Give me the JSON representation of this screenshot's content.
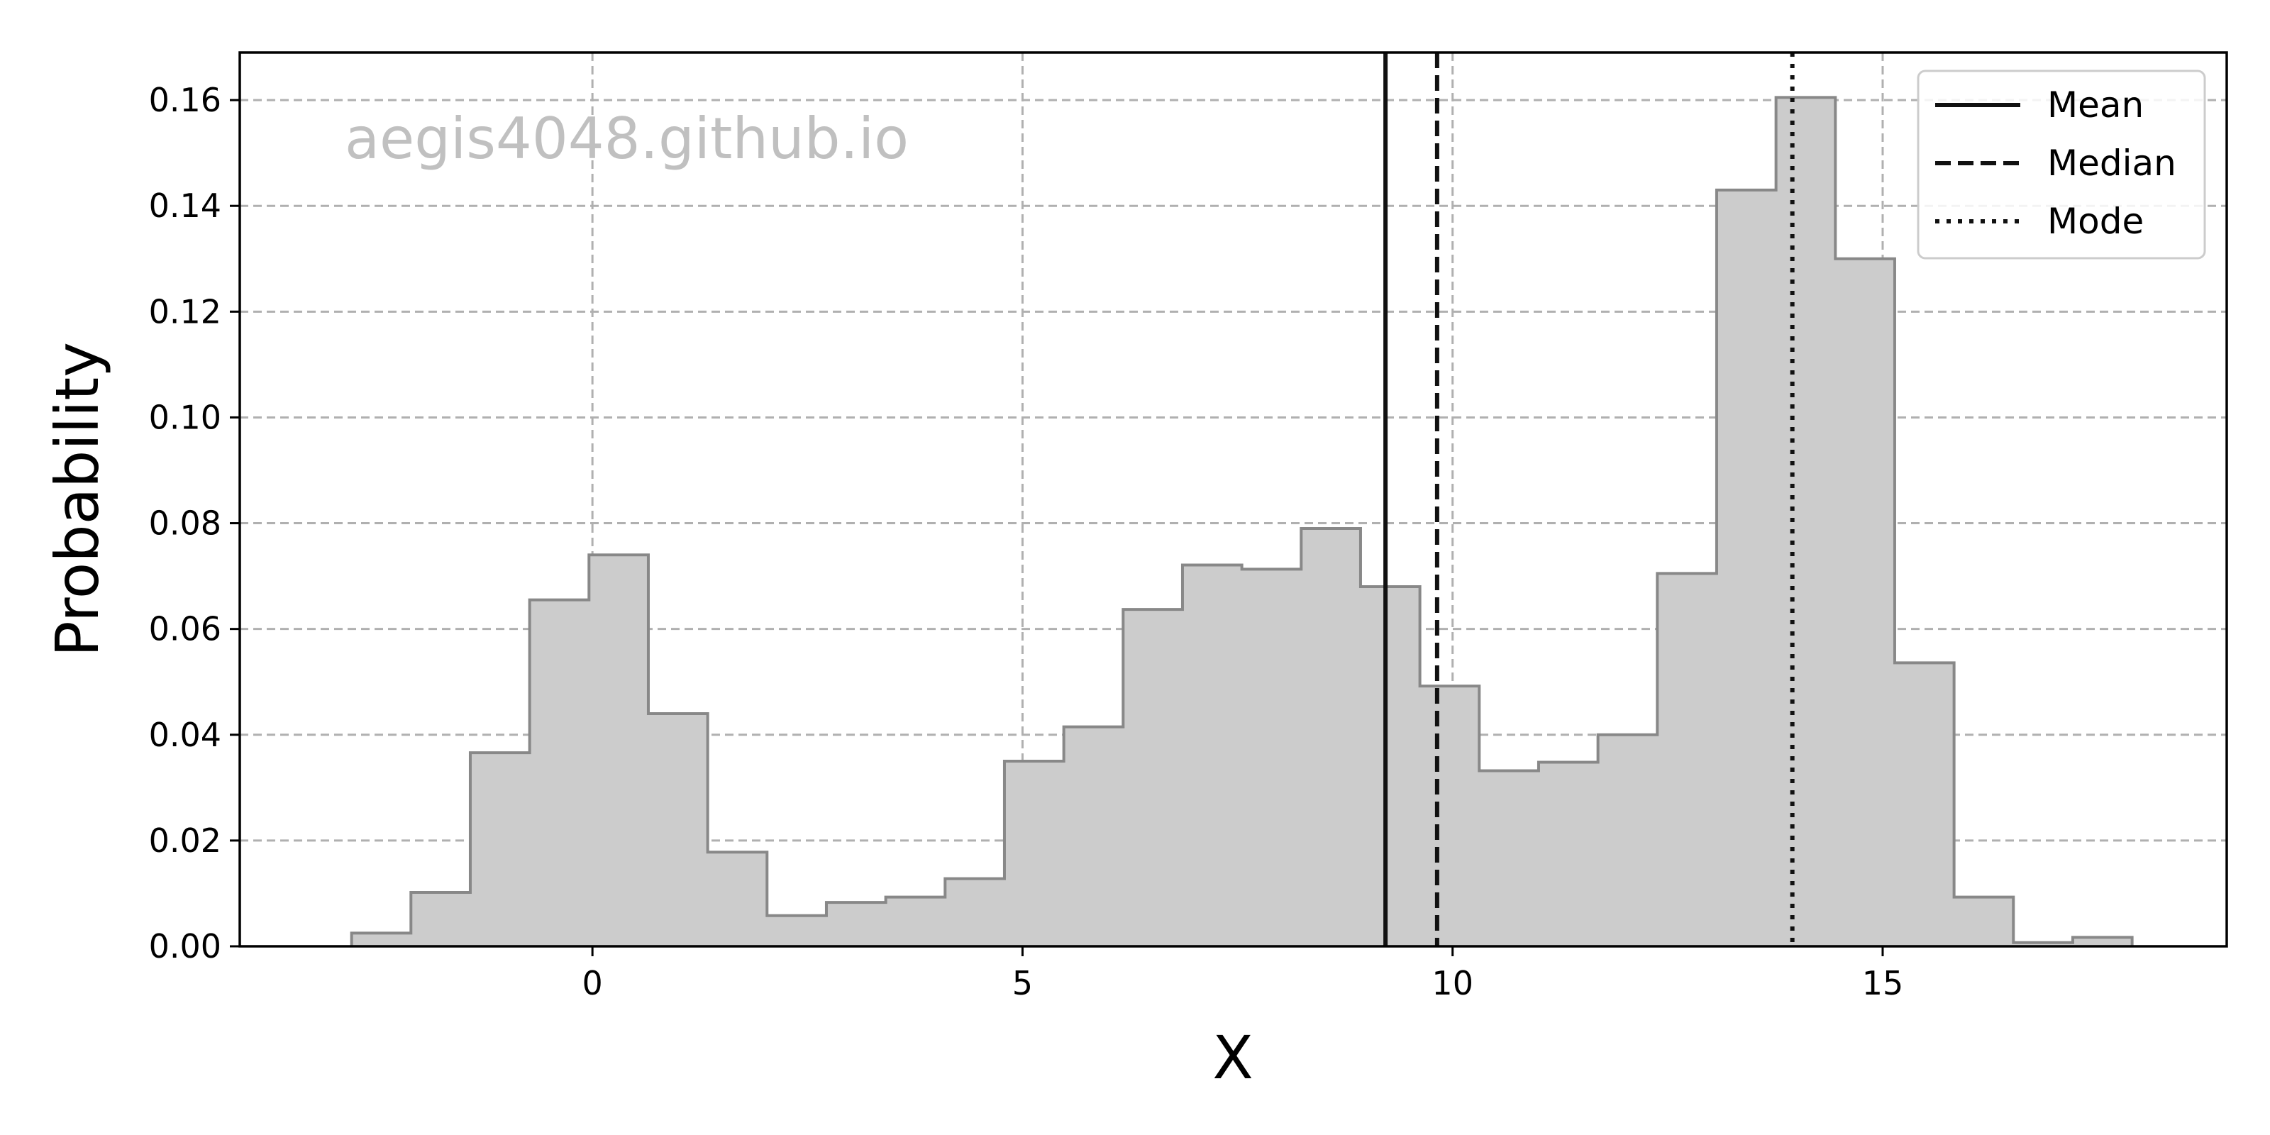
{
  "chart_data": {
    "type": "histogram",
    "title": "",
    "xlabel": "X",
    "ylabel": "Probability",
    "watermark": "aegis4048.github.io",
    "xlim": [
      -4.1,
      19
    ],
    "ylim": [
      0,
      0.169
    ],
    "xticks": [
      0,
      5,
      10,
      15
    ],
    "yticks": [
      0.0,
      0.02,
      0.04,
      0.06,
      0.08,
      0.1,
      0.12,
      0.14,
      0.16
    ],
    "grid": true,
    "bin_width": 0.69,
    "bin_start": -2.8,
    "values": [
      0.0025,
      0.0102,
      0.0366,
      0.0655,
      0.074,
      0.044,
      0.0178,
      0.0058,
      0.0083,
      0.0093,
      0.0128,
      0.035,
      0.0415,
      0.0637,
      0.0721,
      0.0713,
      0.079,
      0.068,
      0.0492,
      0.0332,
      0.0348,
      0.04,
      0.0705,
      0.143,
      0.1605,
      0.13,
      0.0536,
      0.0093,
      0.0007,
      0.0017
    ],
    "fill_color": "#cccccc",
    "edge_color": "#888888",
    "vlines": [
      {
        "name": "Mean",
        "x": 9.22,
        "style": "solid"
      },
      {
        "name": "Median",
        "x": 9.82,
        "style": "dashed"
      },
      {
        "name": "Mode",
        "x": 13.95,
        "style": "dotted"
      }
    ],
    "legend": {
      "position": "top-right",
      "entries": [
        "Mean",
        "Median",
        "Mode"
      ]
    }
  }
}
